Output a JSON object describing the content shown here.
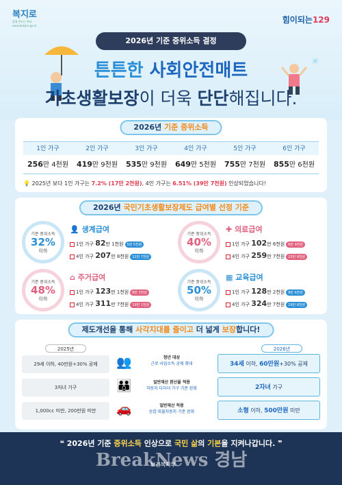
{
  "header": {
    "logo_left": "복지로",
    "logo_left_sub": "함께 만드는 복지",
    "logo_left_url": "www.bokjiro.go.kr",
    "logo_right_prefix": "힘이되는",
    "logo_right_num": "129",
    "pill": "2026년 기준 중위소득 결정",
    "headline1_a": "튼튼한 ",
    "headline1_b": "사회안전매트",
    "headline2_a": "기초생활보장",
    "headline2_b": "이 더욱 ",
    "headline2_c": "단단",
    "headline2_d": "해집니다."
  },
  "income": {
    "title_a": "2026년 ",
    "title_b": "기준 중위소득",
    "headers": [
      "1인 가구",
      "2인 가구",
      "3인 가구",
      "4인 가구",
      "5인 가구",
      "6인 가구"
    ],
    "values_a": [
      "256",
      "419",
      "535",
      "649",
      "755",
      "855"
    ],
    "values_b": [
      "만 4천원",
      "만 9천원",
      "만 9천원",
      "만 5천원",
      "만 7천원",
      "만 6천원"
    ],
    "note_a": "2025년 보다 1인 가구는 ",
    "note_b": "7.2% (17만 2천원)",
    "note_c": ", 4인 가구는 ",
    "note_d": "6.51% (39만 7천원)",
    "note_e": " 인상되었습니다!"
  },
  "benefits": {
    "title_a": "2026년 ",
    "title_b": "국민기초생활보장제도 급여별 선정 기준",
    "circle_label": "기준 중위소득",
    "below": "이하",
    "one": "1인 가구",
    "four": "4인 가구",
    "items": [
      {
        "name": "생계급여",
        "pct": "32%",
        "v1a": "82",
        "v1b": "만 1천원",
        "t1": "5만 5천원",
        "v4a": "207",
        "v4b": "만 8천원",
        "t4": "12만 7천원",
        "color": "#2a8fd6"
      },
      {
        "name": "의료급여",
        "pct": "40%",
        "v1a": "102",
        "v1b": "만 6천원",
        "t1": "6만 9천원",
        "v4a": "259",
        "v4b": "만 7천원",
        "t4": "15만 9천원",
        "color": "#e0607e"
      },
      {
        "name": "주거급여",
        "pct": "48%",
        "v1a": "123",
        "v1b": "만 1천원",
        "t1": "8만 3천원",
        "v4a": "311",
        "v4b": "만 7천원",
        "t4": "19만 1천원",
        "color": "#e0607e"
      },
      {
        "name": "교육급여",
        "pct": "50%",
        "v1a": "128",
        "v1b": "만 2천원",
        "t1": "8만 6천원",
        "v4a": "324",
        "v4b": "만 7천원",
        "t4": "19만 8천원",
        "color": "#2a8fd6"
      }
    ]
  },
  "reform": {
    "title_a": "제도개선을 통해 ",
    "title_b": "사각지대를 줄이고",
    "title_c": " 더 넓게 ",
    "title_d": "보장",
    "title_e": "합니다!",
    "year_old": "2025년",
    "year_new": "2026년",
    "rows": [
      {
        "old": "29세 이하, 40만원+30% 공제",
        "mid1": "청년 대상",
        "mid2": "근로·사업소득 공제 확대",
        "new_a": "34세",
        "new_b": " 이하, ",
        "new_c": "60만원",
        "new_d": "+30% 공제"
      },
      {
        "old": "3자녀 가구",
        "mid1": "일반재산 환산율 적용",
        "mid2": "자동차 다자녀 가구 기준 완화",
        "new_a": "2자녀",
        "new_b": " 가구",
        "new_c": "",
        "new_d": ""
      },
      {
        "old": "1,000cc 미만, 200만원 미만",
        "mid1": "일반재산 적용",
        "mid2": "승합·화물자동차 기준 완화",
        "new_a": "소형",
        "new_b": " 이하, ",
        "new_c": "500만원",
        "new_d": " 미만"
      }
    ]
  },
  "footer": {
    "text_a": "2026년 기준 ",
    "text_b": "중위소득",
    "text_c": " 인상으로 ",
    "text_d": "국민 삶",
    "text_e": "의 ",
    "text_f": "기본",
    "text_g": "을 지켜나갑니다.",
    "org": "보건복지부",
    "watermark": "BreakNews 경남"
  }
}
